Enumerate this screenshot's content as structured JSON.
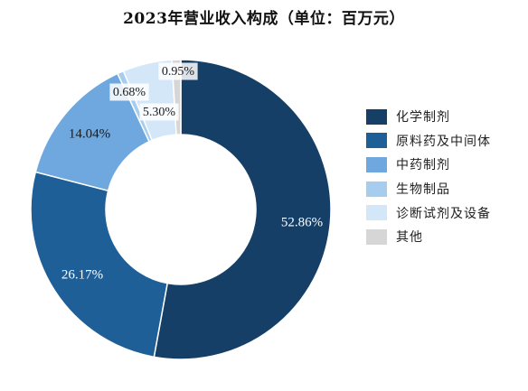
{
  "chart_data": {
    "type": "pie",
    "variant": "donut",
    "title": "2023年营业收入构成（单位：百万元）",
    "categories": [
      "化学制剂",
      "原料药及中间体",
      "中药制剂",
      "生物制品",
      "诊断试剂及设备",
      "其他"
    ],
    "values": [
      52.86,
      26.17,
      14.04,
      0.68,
      5.3,
      0.95
    ],
    "data_labels": [
      "52.86%",
      "26.17%",
      "14.04%",
      "0.68%",
      "5.30%",
      "0.95%"
    ],
    "unit": "%",
    "colors": [
      "#153f66",
      "#1f5f97",
      "#6fa8de",
      "#a7cdee",
      "#d4e7f8",
      "#d6d6d6"
    ],
    "legend_position": "right"
  }
}
